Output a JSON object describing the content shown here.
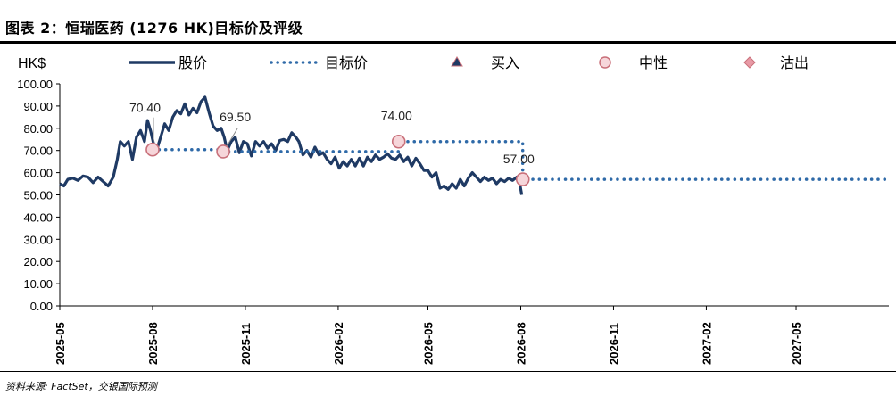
{
  "header": {
    "title": "图表 2：恒瑞医药 (1276 HK)目标价及评级"
  },
  "footer": {
    "source": "资料来源: FactSet，交银国际预测"
  },
  "colors": {
    "price": "#1f3a64",
    "target": "#2f6aa8",
    "marker_fill": "#f6d6da",
    "marker_stroke": "#c9707a",
    "buy": "#1f3a64",
    "sell": "#e89aa6"
  },
  "chart_data": {
    "type": "line",
    "unit_label": "HK$",
    "legend": [
      {
        "label": "股价",
        "kind": "line"
      },
      {
        "label": "目标价",
        "kind": "dotted"
      },
      {
        "label": "买入",
        "kind": "triangle"
      },
      {
        "label": "中性",
        "kind": "circle"
      },
      {
        "label": "沽出",
        "kind": "diamond"
      }
    ],
    "legend_position": "top",
    "ylim": [
      0,
      100
    ],
    "y_ticks": [
      "0.00",
      "10.00",
      "20.00",
      "30.00",
      "40.00",
      "50.00",
      "60.00",
      "70.00",
      "80.00",
      "90.00",
      "100.00"
    ],
    "x_ticks": [
      "2025-05",
      "2025-08",
      "2025-11",
      "2026-02",
      "2026-05",
      "2026-08",
      "2026-11",
      "2027-02",
      "2027-05"
    ],
    "x_range": [
      "2025-05-01",
      "2027-08-01"
    ],
    "grid": false,
    "series": [
      {
        "name": "股价",
        "style": "solid",
        "points": [
          [
            "2025-05-01",
            55.0
          ],
          [
            "2025-05-05",
            54.0
          ],
          [
            "2025-05-09",
            57.0
          ],
          [
            "2025-05-14",
            57.5
          ],
          [
            "2025-05-19",
            56.5
          ],
          [
            "2025-05-24",
            58.5
          ],
          [
            "2025-05-29",
            58.0
          ],
          [
            "2025-06-03",
            55.5
          ],
          [
            "2025-06-08",
            58.0
          ],
          [
            "2025-06-13",
            56.0
          ],
          [
            "2025-06-18",
            54.0
          ],
          [
            "2025-06-23",
            58.0
          ],
          [
            "2025-06-27",
            66.0
          ],
          [
            "2025-06-30",
            74.0
          ],
          [
            "2025-07-04",
            72.0
          ],
          [
            "2025-07-08",
            74.0
          ],
          [
            "2025-07-12",
            66.0
          ],
          [
            "2025-07-16",
            76.0
          ],
          [
            "2025-07-20",
            79.0
          ],
          [
            "2025-07-24",
            74.0
          ],
          [
            "2025-07-27",
            83.5
          ],
          [
            "2025-07-30",
            79.0
          ],
          [
            "2025-08-02",
            73.0
          ],
          [
            "2025-08-05",
            70.0
          ],
          [
            "2025-08-09",
            76.0
          ],
          [
            "2025-08-13",
            82.0
          ],
          [
            "2025-08-17",
            79.0
          ],
          [
            "2025-08-21",
            85.0
          ],
          [
            "2025-08-25",
            88.0
          ],
          [
            "2025-08-29",
            86.5
          ],
          [
            "2025-09-02",
            91.0
          ],
          [
            "2025-09-06",
            86.0
          ],
          [
            "2025-09-10",
            89.0
          ],
          [
            "2025-09-14",
            87.0
          ],
          [
            "2025-09-18",
            92.0
          ],
          [
            "2025-09-22",
            94.0
          ],
          [
            "2025-09-26",
            87.0
          ],
          [
            "2025-09-30",
            81.0
          ],
          [
            "2025-10-04",
            79.0
          ],
          [
            "2025-10-08",
            80.0
          ],
          [
            "2025-10-11",
            76.0
          ],
          [
            "2025-10-14",
            70.0
          ],
          [
            "2025-10-18",
            74.0
          ],
          [
            "2025-10-22",
            76.0
          ],
          [
            "2025-10-26",
            69.0
          ],
          [
            "2025-10-30",
            74.0
          ],
          [
            "2025-11-03",
            73.0
          ],
          [
            "2025-11-07",
            67.5
          ],
          [
            "2025-11-11",
            74.0
          ],
          [
            "2025-11-15",
            72.0
          ],
          [
            "2025-11-19",
            74.0
          ],
          [
            "2025-11-23",
            71.0
          ],
          [
            "2025-11-27",
            73.0
          ],
          [
            "2025-12-01",
            70.0
          ],
          [
            "2025-12-05",
            74.5
          ],
          [
            "2025-12-09",
            75.0
          ],
          [
            "2025-12-13",
            74.0
          ],
          [
            "2025-12-17",
            78.0
          ],
          [
            "2025-12-21",
            76.0
          ],
          [
            "2025-12-24",
            74.0
          ],
          [
            "2025-12-28",
            68.0
          ],
          [
            "2026-01-01",
            70.0
          ],
          [
            "2026-01-05",
            67.0
          ],
          [
            "2026-01-09",
            71.5
          ],
          [
            "2026-01-13",
            68.0
          ],
          [
            "2026-01-17",
            69.0
          ],
          [
            "2026-01-21",
            66.0
          ],
          [
            "2026-01-25",
            64.0
          ],
          [
            "2026-01-29",
            67.0
          ],
          [
            "2026-02-02",
            62.0
          ],
          [
            "2026-02-06",
            65.0
          ],
          [
            "2026-02-10",
            63.0
          ],
          [
            "2026-02-14",
            66.0
          ],
          [
            "2026-02-18",
            63.0
          ],
          [
            "2026-02-22",
            66.5
          ],
          [
            "2026-02-26",
            63.0
          ],
          [
            "2026-03-02",
            67.0
          ],
          [
            "2026-03-06",
            65.0
          ],
          [
            "2026-03-10",
            68.0
          ],
          [
            "2026-03-14",
            66.0
          ],
          [
            "2026-03-18",
            67.0
          ],
          [
            "2026-03-22",
            68.5
          ],
          [
            "2026-03-26",
            66.5
          ],
          [
            "2026-03-30",
            66.0
          ],
          [
            "2026-04-03",
            68.0
          ],
          [
            "2026-04-07",
            65.0
          ],
          [
            "2026-04-11",
            67.0
          ],
          [
            "2026-04-15",
            63.0
          ],
          [
            "2026-04-19",
            66.5
          ],
          [
            "2026-04-23",
            64.0
          ],
          [
            "2026-04-27",
            61.0
          ],
          [
            "2026-05-01",
            61.0
          ],
          [
            "2026-05-05",
            58.0
          ],
          [
            "2026-05-09",
            60.0
          ],
          [
            "2026-05-13",
            53.0
          ],
          [
            "2026-05-17",
            54.0
          ],
          [
            "2026-05-21",
            52.5
          ],
          [
            "2026-05-25",
            55.0
          ],
          [
            "2026-05-29",
            53.0
          ],
          [
            "2026-06-02",
            57.0
          ],
          [
            "2026-06-06",
            54.0
          ],
          [
            "2026-06-10",
            57.5
          ],
          [
            "2026-06-14",
            60.0
          ],
          [
            "2026-06-18",
            58.0
          ],
          [
            "2026-06-22",
            56.0
          ],
          [
            "2026-06-26",
            58.0
          ],
          [
            "2026-06-30",
            56.5
          ],
          [
            "2026-07-04",
            57.5
          ],
          [
            "2026-07-08",
            55.0
          ],
          [
            "2026-07-12",
            57.0
          ],
          [
            "2026-07-16",
            56.0
          ],
          [
            "2026-07-20",
            57.5
          ],
          [
            "2026-07-24",
            56.5
          ],
          [
            "2026-07-28",
            58.0
          ],
          [
            "2026-07-31",
            55.0
          ],
          [
            "2026-08-02",
            50.0
          ]
        ]
      },
      {
        "name": "目标价",
        "style": "dotted",
        "points": [
          [
            "2025-08-01",
            70.4
          ],
          [
            "2025-10-10",
            70.4
          ],
          [
            "2025-10-10",
            69.5
          ],
          [
            "2026-04-02",
            69.5
          ],
          [
            "2026-04-02",
            74.0
          ],
          [
            "2026-08-03",
            74.0
          ],
          [
            "2026-08-03",
            57.0
          ],
          [
            "2027-08-01",
            57.0
          ]
        ]
      }
    ],
    "ratings": [
      {
        "date": "2025-08-01",
        "value": 70.4,
        "rating": "中性",
        "label": "70.40",
        "pointer": false
      },
      {
        "date": "2025-10-10",
        "value": 69.5,
        "rating": "中性",
        "label": "69.50",
        "pointer": true
      },
      {
        "date": "2026-04-02",
        "value": 74.0,
        "rating": "中性",
        "label": "74.00",
        "pointer": false
      },
      {
        "date": "2026-08-03",
        "value": 57.0,
        "rating": "中性",
        "label": "57.00",
        "pointer": false
      }
    ]
  }
}
